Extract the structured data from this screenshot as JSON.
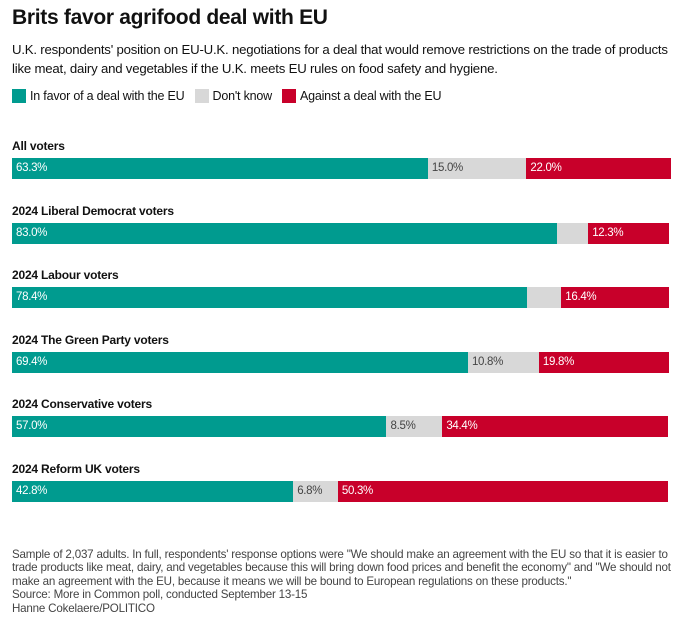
{
  "chart_data": {
    "type": "bar",
    "orientation": "horizontal",
    "stacked": true,
    "title": "Brits favor agrifood deal with EU",
    "subtitle": "U.K. respondents' position on EU-U.K. negotiations for a deal that would remove restrictions on the trade of products like meat, dairy and vegetables if the U.K. meets EU rules on food safety and hygiene.",
    "xlim": [
      0,
      100
    ],
    "legend_position": "top-left",
    "series": [
      {
        "name": "In favor of a deal with the EU",
        "color": "#009b8f",
        "label_color": "#ffffff"
      },
      {
        "name": "Don't know",
        "color": "#d8d8d8",
        "label_color": "#444444"
      },
      {
        "name": "Against a deal with the EU",
        "color": "#c8002a",
        "label_color": "#ffffff"
      }
    ],
    "categories": [
      "All voters",
      "2024 Liberal Democrat voters",
      "2024 Labour voters",
      "2024 The Green Party voters",
      "2024 Conservative voters",
      "2024 Reform UK voters"
    ],
    "rows": [
      {
        "category": "All voters",
        "values": [
          63.3,
          15.0,
          22.0
        ],
        "labels": [
          "63.3%",
          "15.0%",
          "22.0%"
        ]
      },
      {
        "category": "2024 Liberal Democrat voters",
        "values": [
          83.0,
          4.7,
          12.3
        ],
        "labels": [
          "83.0%",
          "",
          "12.3%"
        ]
      },
      {
        "category": "2024 Labour voters",
        "values": [
          78.4,
          5.2,
          16.4
        ],
        "labels": [
          "78.4%",
          "",
          "16.4%"
        ]
      },
      {
        "category": "2024 The Green Party voters",
        "values": [
          69.4,
          10.8,
          19.8
        ],
        "labels": [
          "69.4%",
          "10.8%",
          "19.8%"
        ]
      },
      {
        "category": "2024 Conservative voters",
        "values": [
          57.0,
          8.5,
          34.4
        ],
        "labels": [
          "57.0%",
          "8.5%",
          "34.4%"
        ]
      },
      {
        "category": "2024 Reform UK voters",
        "values": [
          42.8,
          6.8,
          50.3
        ],
        "labels": [
          "42.8%",
          "6.8%",
          "50.3%"
        ]
      }
    ]
  },
  "footer": {
    "note": "Sample of 2,037 adults. In full, respondents' response options were \"We should make an agreement with the EU so that it is easier to trade products like meat, dairy, and vegetables because this will bring down food prices and benefit the economy\" and \"We should not make an agreement with the EU, because it means we will be bound to European regulations on these products.\"",
    "source": "Source: More in Common poll, conducted September 13-15",
    "credit": "Hanne Cokelaere/POLITICO"
  }
}
